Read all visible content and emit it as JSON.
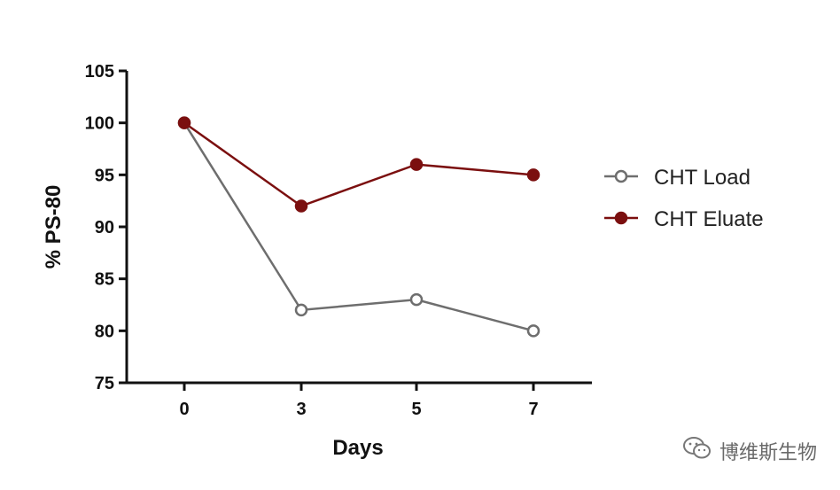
{
  "chart_data": {
    "type": "line",
    "title": "",
    "xlabel": "Days",
    "ylabel": "% PS-80",
    "x": [
      0,
      3,
      5,
      7
    ],
    "x_tick_labels": [
      "0",
      "3",
      "5",
      "7"
    ],
    "y_ticks": [
      75,
      80,
      85,
      90,
      95,
      100,
      105
    ],
    "ylim": [
      75,
      105
    ],
    "grid": false,
    "legend_position": "right",
    "series": [
      {
        "name": "CHT Load",
        "values": [
          100,
          82,
          83,
          80
        ],
        "color": "#6e6e6e",
        "marker": "open-circle"
      },
      {
        "name": "CHT Eluate",
        "values": [
          100,
          92,
          96,
          95
        ],
        "color": "#7b0f0f",
        "marker": "filled-circle"
      }
    ]
  },
  "watermark": {
    "icon": "wechat-icon",
    "text": "博维斯生物"
  }
}
